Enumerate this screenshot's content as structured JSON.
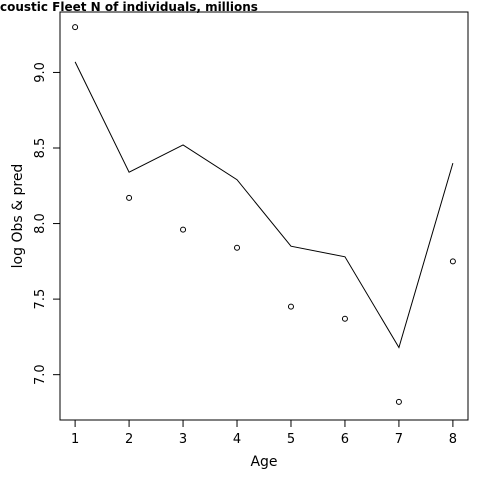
{
  "chart_data": {
    "type": "line",
    "title": "coustic Fleet   N of individuals, millions",
    "xlabel": "Age",
    "ylabel": "log Obs & pred",
    "x": [
      1,
      2,
      3,
      4,
      5,
      6,
      7,
      8
    ],
    "xlim": [
      0.72,
      8.28
    ],
    "ylim": [
      6.7,
      9.4
    ],
    "xticks": [
      1,
      2,
      3,
      4,
      5,
      6,
      7,
      8
    ],
    "yticks": [
      7.0,
      7.5,
      8.0,
      8.5,
      9.0
    ],
    "ytick_labels": [
      "7.0",
      "7.5",
      "8.0",
      "8.5",
      "9.0"
    ],
    "grid": false,
    "series": [
      {
        "style": "line",
        "values": [
          9.07,
          8.34,
          8.52,
          8.29,
          7.85,
          7.78,
          7.18,
          8.4
        ]
      },
      {
        "style": "points",
        "values": [
          9.3,
          8.17,
          7.96,
          7.84,
          7.45,
          7.37,
          6.82,
          7.75
        ]
      }
    ]
  }
}
